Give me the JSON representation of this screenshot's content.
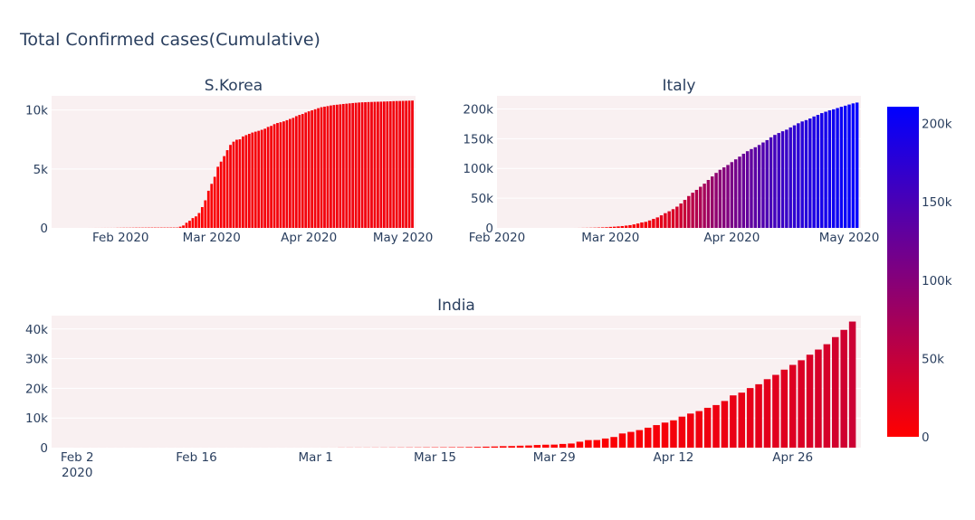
{
  "title": "Total Confirmed cases(Cumulative)",
  "colors": {
    "plot_bg": "#f9f0f1",
    "low": "#ff0000",
    "high": "#0000ff"
  },
  "colorbar": {
    "min": 0,
    "max": 210717,
    "ticks": [
      "0",
      "50k",
      "100k",
      "150k",
      "200k"
    ],
    "tick_values": [
      0,
      50000,
      100000,
      150000,
      200000
    ]
  },
  "chart_data": [
    {
      "type": "bar",
      "title": "S.Korea",
      "x_start": "2020-01-22",
      "x_range": [
        "2020-01-10",
        "2020-05-05"
      ],
      "xticks": [
        {
          "date": "2020-02-01",
          "label": "Feb 2020"
        },
        {
          "date": "2020-03-01",
          "label": "Mar 2020"
        },
        {
          "date": "2020-04-01",
          "label": "Apr 2020"
        },
        {
          "date": "2020-05-01",
          "label": "May 2020"
        }
      ],
      "ylim": [
        0,
        11200
      ],
      "yticks": [
        {
          "value": 0,
          "label": "0"
        },
        {
          "value": 5000,
          "label": "5k"
        },
        {
          "value": 10000,
          "label": "10k"
        }
      ],
      "values": [
        1,
        1,
        2,
        2,
        3,
        4,
        4,
        4,
        4,
        11,
        12,
        15,
        15,
        16,
        19,
        23,
        24,
        24,
        25,
        27,
        28,
        28,
        28,
        28,
        28,
        29,
        30,
        31,
        31,
        104,
        204,
        433,
        602,
        833,
        977,
        1261,
        1766,
        2337,
        3150,
        3736,
        4335,
        5186,
        5621,
        6088,
        6593,
        7041,
        7314,
        7478,
        7513,
        7755,
        7869,
        7979,
        8086,
        8162,
        8236,
        8320,
        8413,
        8565,
        8652,
        8799,
        8897,
        8961,
        9037,
        9137,
        9241,
        9332,
        9478,
        9583,
        9661,
        9786,
        9887,
        9976,
        10062,
        10156,
        10237,
        10284,
        10331,
        10384,
        10423,
        10450,
        10480,
        10512,
        10537,
        10564,
        10591,
        10613,
        10635,
        10653,
        10661,
        10674,
        10683,
        10694,
        10702,
        10708,
        10718,
        10728,
        10738,
        10752,
        10761,
        10765,
        10774,
        10780,
        10793,
        10801
      ]
    },
    {
      "type": "bar",
      "title": "Italy",
      "x_start": "2020-01-31",
      "x_range": [
        "2020-02-01",
        "2020-05-04"
      ],
      "xticks": [
        {
          "date": "2020-02-01",
          "label": "Feb 2020"
        },
        {
          "date": "2020-03-01",
          "label": "Mar 2020"
        },
        {
          "date": "2020-04-01",
          "label": "Apr 2020"
        },
        {
          "date": "2020-05-01",
          "label": "May 2020"
        }
      ],
      "ylim": [
        0,
        222000
      ],
      "yticks": [
        {
          "value": 0,
          "label": "0"
        },
        {
          "value": 50000,
          "label": "50k"
        },
        {
          "value": 100000,
          "label": "100k"
        },
        {
          "value": 150000,
          "label": "150k"
        },
        {
          "value": 200000,
          "label": "200k"
        }
      ],
      "values": [
        2,
        2,
        2,
        2,
        2,
        2,
        2,
        3,
        3,
        3,
        3,
        3,
        3,
        3,
        3,
        3,
        3,
        3,
        3,
        3,
        3,
        20,
        62,
        155,
        229,
        322,
        453,
        655,
        888,
        1128,
        1694,
        2036,
        2502,
        3089,
        3858,
        4636,
        5883,
        7375,
        9172,
        10149,
        12462,
        15113,
        17660,
        21157,
        24747,
        27980,
        31506,
        35713,
        41035,
        47021,
        53578,
        59138,
        63927,
        69176,
        74386,
        80589,
        86498,
        92472,
        97689,
        101739,
        105792,
        110574,
        115242,
        119827,
        124632,
        128948,
        132547,
        135586,
        139422,
        143626,
        147577,
        152271,
        156363,
        159516,
        162488,
        165155,
        168941,
        172434,
        175925,
        178972,
        181228,
        183957,
        187327,
        189973,
        192994,
        195351,
        197675,
        199414,
        201505,
        203591,
        205463,
        207428,
        209328,
        210717
      ]
    },
    {
      "type": "bar",
      "title": "India",
      "x_start": "2020-01-30",
      "x_range": [
        "2020-01-30",
        "2020-05-04"
      ],
      "xticks": [
        {
          "date": "2020-02-02",
          "label": "Feb 2",
          "sub": "2020"
        },
        {
          "date": "2020-02-16",
          "label": "Feb 16"
        },
        {
          "date": "2020-03-01",
          "label": "Mar 1"
        },
        {
          "date": "2020-03-15",
          "label": "Mar 15"
        },
        {
          "date": "2020-03-29",
          "label": "Mar 29"
        },
        {
          "date": "2020-04-12",
          "label": "Apr 12"
        },
        {
          "date": "2020-04-26",
          "label": "Apr 26"
        }
      ],
      "ylim": [
        0,
        44500
      ],
      "yticks": [
        {
          "value": 0,
          "label": "0"
        },
        {
          "value": 10000,
          "label": "10k"
        },
        {
          "value": 20000,
          "label": "20k"
        },
        {
          "value": 30000,
          "label": "30k"
        },
        {
          "value": 40000,
          "label": "40k"
        }
      ],
      "values": [
        1,
        1,
        1,
        2,
        3,
        3,
        3,
        3,
        3,
        3,
        3,
        3,
        3,
        3,
        3,
        3,
        3,
        3,
        3,
        3,
        3,
        3,
        3,
        3,
        3,
        3,
        3,
        3,
        3,
        3,
        3,
        3,
        5,
        5,
        28,
        30,
        31,
        34,
        39,
        43,
        56,
        62,
        73,
        82,
        102,
        113,
        119,
        142,
        156,
        194,
        244,
        330,
        396,
        499,
        536,
        657,
        727,
        887,
        987,
        1024,
        1251,
        1397,
        1998,
        2543,
        2567,
        3082,
        3588,
        4778,
        5311,
        5916,
        6725,
        7598,
        8446,
        9205,
        10453,
        11487,
        12322,
        13430,
        14352,
        15722,
        17615,
        18539,
        20080,
        21370,
        23077,
        24530,
        26283,
        27890,
        29451,
        31324,
        33062,
        34863,
        37257,
        39699,
        42505
      ]
    }
  ]
}
